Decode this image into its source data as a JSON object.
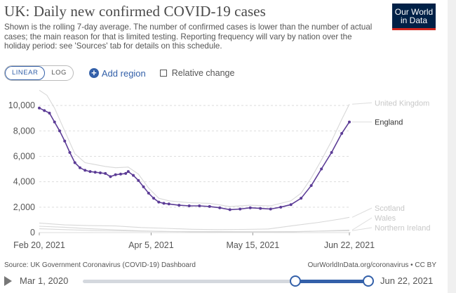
{
  "header": {
    "title": "UK: Daily new confirmed COVID-19 cases",
    "subtitle": "Shown is the rolling 7-day average. The number of confirmed cases is lower than the number of actual cases; the main reason for that is limited testing. Reporting frequency will vary by nation over the holiday period: see 'Sources' tab for details on this schedule.",
    "logo_line1": "Our World",
    "logo_line2": "in Data"
  },
  "controls": {
    "linear_label": "LINEAR",
    "log_label": "LOG",
    "add_region_label": "Add region",
    "relative_change_label": "Relative change"
  },
  "footer": {
    "source": "Source: UK Government Coronavirus (COVID-19) Dashboard",
    "credit": "OurWorldInData.org/coronavirus • CC BY"
  },
  "timeline": {
    "start_label": "Mar 1, 2020",
    "end_label": "Jun 22, 2021"
  },
  "colors": {
    "england": "#5c3c96",
    "muted_line": "#d8d8d8",
    "accent": "#3360a9"
  },
  "chart_data": {
    "type": "line",
    "title": "UK: Daily new confirmed COVID-19 cases",
    "x_tick_labels": [
      "Feb 20, 2021",
      "Apr 5, 2021",
      "May 15, 2021",
      "Jun 22, 2021"
    ],
    "x_tick_days": [
      0,
      44,
      84,
      122
    ],
    "y_ticks": [
      0,
      2000,
      4000,
      6000,
      8000,
      10000
    ],
    "y_tick_labels": [
      "0",
      "2,000",
      "4,000",
      "6,000",
      "8,000",
      "10,000"
    ],
    "ylim": [
      0,
      11000
    ],
    "xlim": [
      0,
      122
    ],
    "grid": true,
    "series": [
      {
        "name": "England",
        "highlighted": true,
        "points": [
          [
            0,
            9800
          ],
          [
            2,
            9600
          ],
          [
            4,
            9400
          ],
          [
            6,
            8700
          ],
          [
            8,
            8000
          ],
          [
            10,
            7200
          ],
          [
            12,
            6300
          ],
          [
            14,
            5500
          ],
          [
            16,
            5100
          ],
          [
            18,
            4900
          ],
          [
            20,
            4800
          ],
          [
            22,
            4750
          ],
          [
            24,
            4700
          ],
          [
            26,
            4650
          ],
          [
            28,
            4400
          ],
          [
            30,
            4550
          ],
          [
            32,
            4600
          ],
          [
            34,
            4650
          ],
          [
            35,
            4800
          ],
          [
            37,
            4500
          ],
          [
            39,
            4100
          ],
          [
            41,
            3600
          ],
          [
            43,
            3100
          ],
          [
            45,
            2700
          ],
          [
            47,
            2400
          ],
          [
            49,
            2300
          ],
          [
            51,
            2250
          ],
          [
            55,
            2150
          ],
          [
            59,
            2100
          ],
          [
            63,
            2100
          ],
          [
            67,
            2050
          ],
          [
            71,
            1950
          ],
          [
            75,
            1800
          ],
          [
            79,
            1850
          ],
          [
            83,
            1950
          ],
          [
            87,
            1900
          ],
          [
            91,
            1850
          ],
          [
            95,
            2000
          ],
          [
            99,
            2200
          ],
          [
            103,
            2700
          ],
          [
            107,
            3700
          ],
          [
            111,
            5000
          ],
          [
            115,
            6300
          ],
          [
            119,
            7800
          ],
          [
            122,
            8700
          ]
        ]
      },
      {
        "name": "United Kingdom",
        "highlighted": false,
        "points": [
          [
            0,
            11200
          ],
          [
            3,
            10800
          ],
          [
            6,
            9800
          ],
          [
            10,
            8000
          ],
          [
            14,
            6200
          ],
          [
            18,
            5500
          ],
          [
            22,
            5350
          ],
          [
            26,
            5200
          ],
          [
            30,
            5100
          ],
          [
            35,
            5150
          ],
          [
            39,
            4600
          ],
          [
            43,
            3500
          ],
          [
            47,
            2700
          ],
          [
            51,
            2500
          ],
          [
            59,
            2350
          ],
          [
            67,
            2300
          ],
          [
            75,
            2050
          ],
          [
            83,
            2150
          ],
          [
            91,
            2100
          ],
          [
            99,
            2500
          ],
          [
            103,
            3100
          ],
          [
            107,
            4300
          ],
          [
            111,
            5700
          ],
          [
            115,
            7200
          ],
          [
            119,
            8900
          ],
          [
            122,
            10100
          ]
        ]
      },
      {
        "name": "Scotland",
        "highlighted": false,
        "points": [
          [
            0,
            750
          ],
          [
            10,
            600
          ],
          [
            20,
            550
          ],
          [
            30,
            520
          ],
          [
            40,
            400
          ],
          [
            50,
            330
          ],
          [
            60,
            260
          ],
          [
            70,
            230
          ],
          [
            80,
            250
          ],
          [
            90,
            280
          ],
          [
            100,
            550
          ],
          [
            110,
            800
          ],
          [
            118,
            1050
          ],
          [
            122,
            1200
          ]
        ]
      },
      {
        "name": "Wales",
        "highlighted": false,
        "points": [
          [
            0,
            500
          ],
          [
            10,
            420
          ],
          [
            20,
            300
          ],
          [
            30,
            220
          ],
          [
            40,
            140
          ],
          [
            50,
            90
          ],
          [
            60,
            60
          ],
          [
            70,
            40
          ],
          [
            80,
            30
          ],
          [
            90,
            30
          ],
          [
            100,
            60
          ],
          [
            110,
            120
          ],
          [
            122,
            200
          ]
        ]
      },
      {
        "name": "Northern Ireland",
        "highlighted": false,
        "points": [
          [
            0,
            300
          ],
          [
            10,
            230
          ],
          [
            20,
            170
          ],
          [
            30,
            140
          ],
          [
            40,
            110
          ],
          [
            50,
            90
          ],
          [
            60,
            80
          ],
          [
            70,
            80
          ],
          [
            80,
            70
          ],
          [
            90,
            70
          ],
          [
            100,
            80
          ],
          [
            110,
            110
          ],
          [
            122,
            150
          ]
        ]
      }
    ],
    "legend_labels": [
      "United Kingdom",
      "England",
      "Scotland",
      "Wales",
      "Northern Ireland"
    ],
    "legend_placement": "right"
  }
}
